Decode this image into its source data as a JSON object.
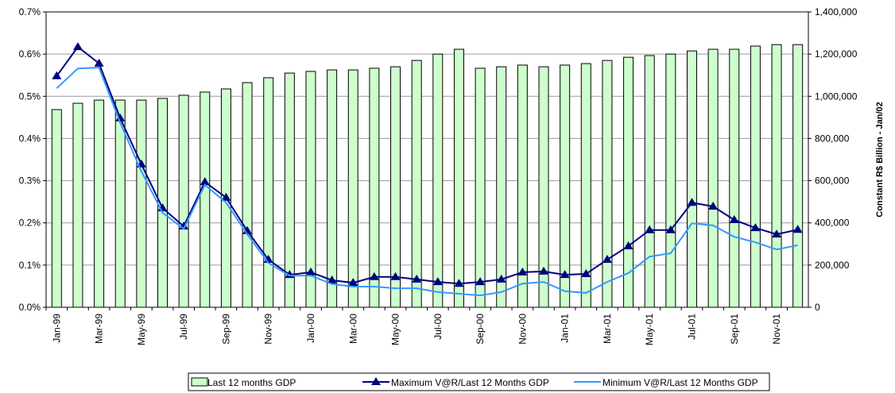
{
  "chart_data": {
    "type": "bar",
    "categories": [
      "Jan-99",
      null,
      "Mar-99",
      null,
      "May-99",
      null,
      "Jul-99",
      null,
      "Sep-99",
      null,
      "Nov-99",
      null,
      "Jan-00",
      null,
      "Mar-00",
      null,
      "May-00",
      null,
      "Jul-00",
      null,
      "Sep-00",
      null,
      "Nov-00",
      null,
      "Jan-01",
      null,
      "Mar-01",
      null,
      "May-01",
      null,
      "Jul-01",
      null,
      "Sep-01",
      null,
      "Nov-01",
      null
    ],
    "series": [
      {
        "name": "Last 12 months GDP",
        "type": "bar",
        "axis": "y2",
        "color": "#ccffcc",
        "values": [
          937000,
          967000,
          982000,
          982000,
          982000,
          990000,
          1005000,
          1020000,
          1035000,
          1065000,
          1088000,
          1110000,
          1118000,
          1125000,
          1125000,
          1133000,
          1140000,
          1170000,
          1200000,
          1223000,
          1133000,
          1140000,
          1148000,
          1140000,
          1148000,
          1155000,
          1170000,
          1185000,
          1193000,
          1200000,
          1215000,
          1223000,
          1223000,
          1238000,
          1245000,
          1245000
        ]
      },
      {
        "name": "Maximum V@R/Last 12 Months GDP",
        "type": "line",
        "marker": "triangle",
        "color": "#000080",
        "values": [
          0.548,
          0.617,
          0.578,
          0.448,
          0.339,
          0.235,
          0.192,
          0.297,
          0.26,
          0.181,
          0.113,
          0.077,
          0.083,
          0.064,
          0.058,
          0.072,
          0.072,
          0.066,
          0.06,
          0.056,
          0.06,
          0.066,
          0.083,
          0.085,
          0.077,
          0.079,
          0.113,
          0.145,
          0.183,
          0.183,
          0.248,
          0.239,
          0.207,
          0.188,
          0.173,
          0.184
        ]
      },
      {
        "name": "Minimum V@R/Last 12 Months GDP",
        "type": "line",
        "color": "#3399ff",
        "values": [
          0.519,
          0.566,
          0.568,
          0.437,
          0.322,
          0.224,
          0.186,
          0.29,
          0.248,
          0.173,
          0.105,
          0.075,
          0.075,
          0.055,
          0.049,
          0.049,
          0.045,
          0.045,
          0.036,
          0.032,
          0.028,
          0.036,
          0.056,
          0.06,
          0.038,
          0.034,
          0.06,
          0.081,
          0.12,
          0.128,
          0.199,
          0.194,
          0.167,
          0.154,
          0.137,
          0.147
        ]
      }
    ],
    "ylim": [
      0,
      0.7
    ],
    "yticks": [
      {
        "value": 0,
        "label": "0.0%"
      },
      {
        "value": 0.1,
        "label": "0.1%"
      },
      {
        "value": 0.2,
        "label": "0.2%"
      },
      {
        "value": 0.3,
        "label": "0.3%"
      },
      {
        "value": 0.4,
        "label": "0.4%"
      },
      {
        "value": 0.5,
        "label": "0.5%"
      },
      {
        "value": 0.6,
        "label": "0.6%"
      },
      {
        "value": 0.7,
        "label": "0.7%"
      }
    ],
    "y2lim": [
      0,
      1400000
    ],
    "y2ticks": [
      0,
      {
        "value": 200000,
        "label": "200,000"
      },
      {
        "value": 400000,
        "label": "400,000"
      },
      {
        "value": 600000,
        "label": "600,000"
      },
      {
        "value": 800000,
        "label": "800,000"
      },
      {
        "value": 1000000,
        "label": "1,000,000"
      },
      {
        "value": 1200000,
        "label": "1,200,000"
      },
      {
        "value": 1400000,
        "label": "1,400,000"
      }
    ],
    "y2label": "Constant R$ Billion - Jan/02",
    "grid": true,
    "legend": "bottom"
  }
}
